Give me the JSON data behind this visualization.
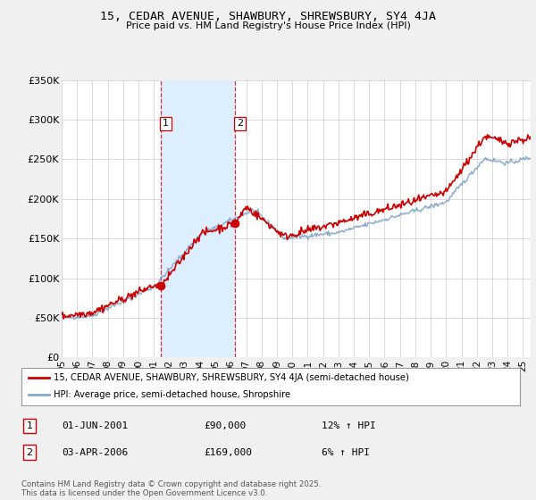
{
  "title": "15, CEDAR AVENUE, SHAWBURY, SHREWSBURY, SY4 4JA",
  "subtitle": "Price paid vs. HM Land Registry's House Price Index (HPI)",
  "ylabel_ticks": [
    "£0",
    "£50K",
    "£100K",
    "£150K",
    "£200K",
    "£250K",
    "£300K",
    "£350K"
  ],
  "ylim": [
    0,
    350000
  ],
  "xlim_start": 1995.0,
  "xlim_end": 2025.5,
  "line1_color": "#cc0000",
  "line2_color": "#88aacc",
  "shade_color": "#ddeeff",
  "line1_label": "15, CEDAR AVENUE, SHAWBURY, SHREWSBURY, SY4 4JA (semi-detached house)",
  "line2_label": "HPI: Average price, semi-detached house, Shropshire",
  "transaction1_label": "1",
  "transaction1_date": "01-JUN-2001",
  "transaction1_price": "£90,000",
  "transaction1_hpi": "12% ↑ HPI",
  "transaction1_x": 2001.42,
  "transaction1_y": 90000,
  "transaction2_label": "2",
  "transaction2_date": "03-APR-2006",
  "transaction2_price": "£169,000",
  "transaction2_hpi": "6% ↑ HPI",
  "transaction2_x": 2006.25,
  "transaction2_y": 169000,
  "footer": "Contains HM Land Registry data © Crown copyright and database right 2025.\nThis data is licensed under the Open Government Licence v3.0.",
  "background_color": "#f0f0f0",
  "plot_bg_color": "#ffffff",
  "grid_color": "#cccccc"
}
